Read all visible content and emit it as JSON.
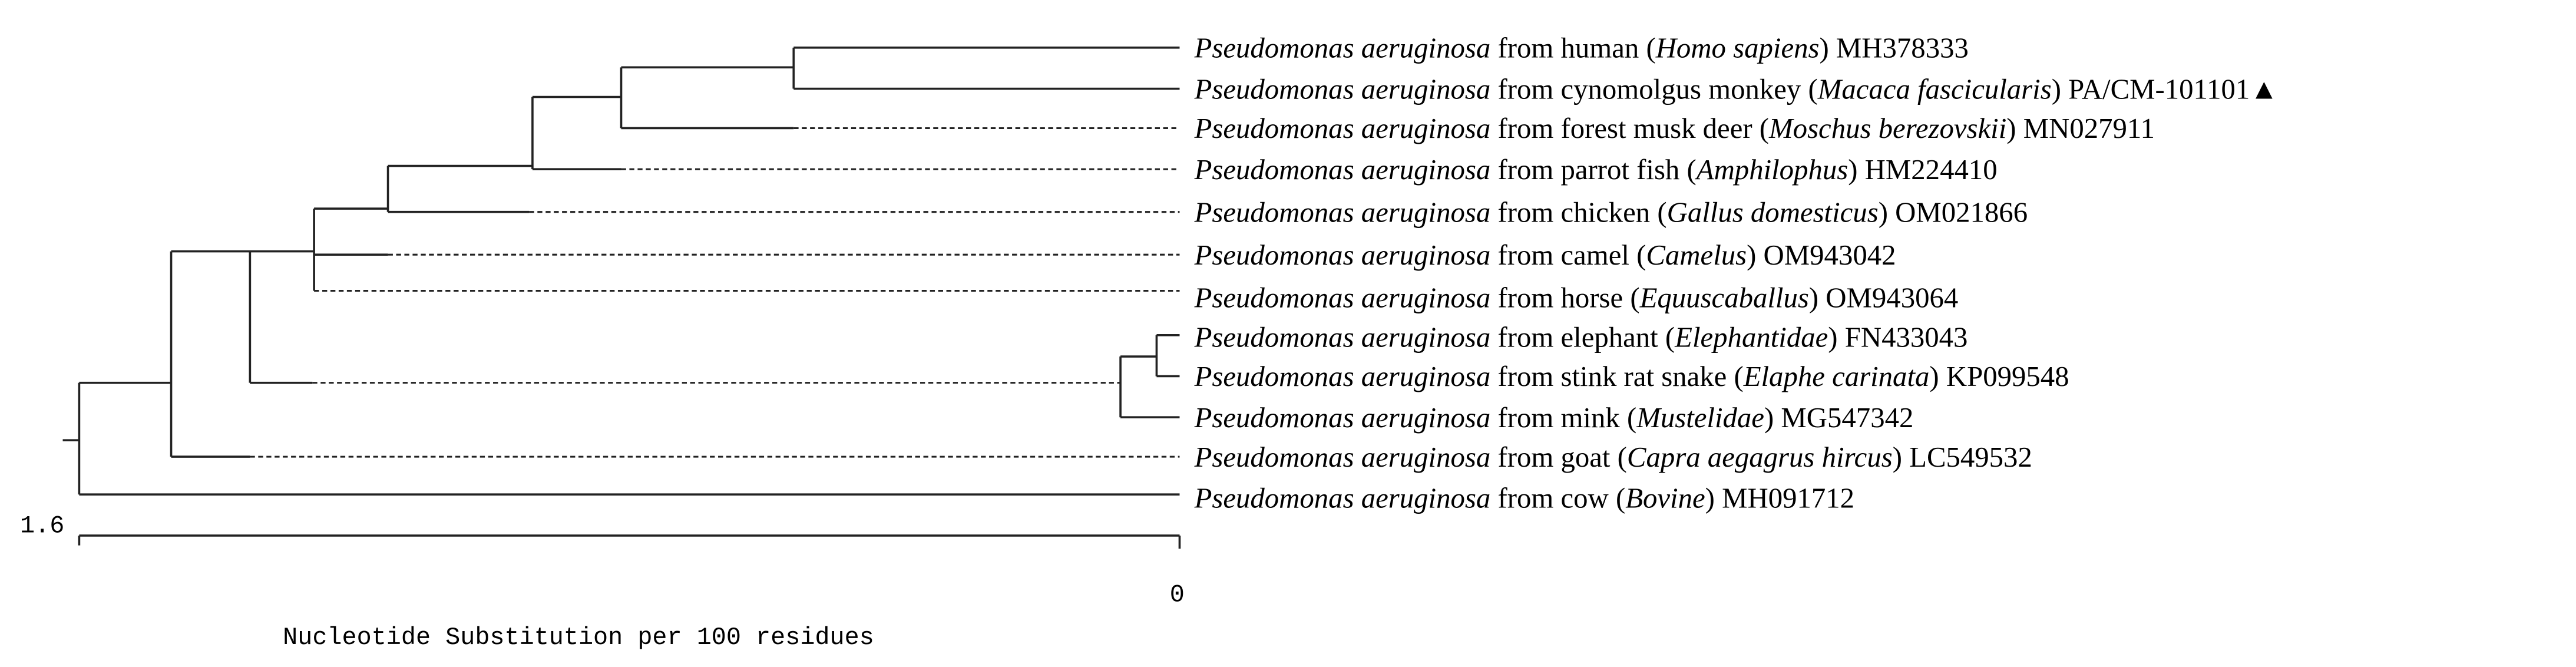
{
  "tree": {
    "leaves": [
      {
        "species": "Pseudomonas aeruginosa",
        "text": " from human (",
        "host": "Homo sapiens",
        "accession": ") MH378333"
      },
      {
        "species": "Pseudomonas aeruginosa",
        "text": " from cynomolgus monkey (",
        "host": "Macaca fascicularis",
        "accession": ") PA/CM-101101▲"
      },
      {
        "species": "Pseudomonas aeruginosa",
        "text": " from forest musk deer (",
        "host": "Moschus berezovskii",
        "accession": ") MN027911"
      },
      {
        "species": "Pseudomonas aeruginosa",
        "text": " from parrot fish (",
        "host": "Amphilophus",
        "accession": ") HM224410"
      },
      {
        "species": "Pseudomonas aeruginosa",
        "text": " from chicken (",
        "host": "Gallus domesticus",
        "accession": ") OM021866"
      },
      {
        "species": "Pseudomonas aeruginosa",
        "text": " from camel (",
        "host": "Camelus",
        "accession": ") OM943042"
      },
      {
        "species": "Pseudomonas aeruginosa",
        "text": " from horse (",
        "host": "Equuscaballus",
        "accession": ") OM943064"
      },
      {
        "species": "Pseudomonas aeruginosa",
        "text": " from elephant (",
        "host": "Elephantidae",
        "accession": ") FN433043"
      },
      {
        "species": "Pseudomonas aeruginosa",
        "text": " from stink rat snake (",
        "host": "Elaphe carinata",
        "accession": ") KP099548"
      },
      {
        "species": "Pseudomonas aeruginosa",
        "text": " from mink (",
        "host": "Mustelidae",
        "accession": ") MG547342"
      },
      {
        "species": "Pseudomonas aeruginosa",
        "text": " from goat (",
        "host": "Capra aegagrus hircus",
        "accession": ") LC549532"
      },
      {
        "species": "Pseudomonas aeruginosa",
        "text": " from cow (",
        "host": "Bovine",
        "accession": ") MH091712"
      }
    ]
  },
  "scale": {
    "left_label": "1.6",
    "right_label": "0",
    "axis_label": "Nucleotide Substitution per 100 residues"
  }
}
